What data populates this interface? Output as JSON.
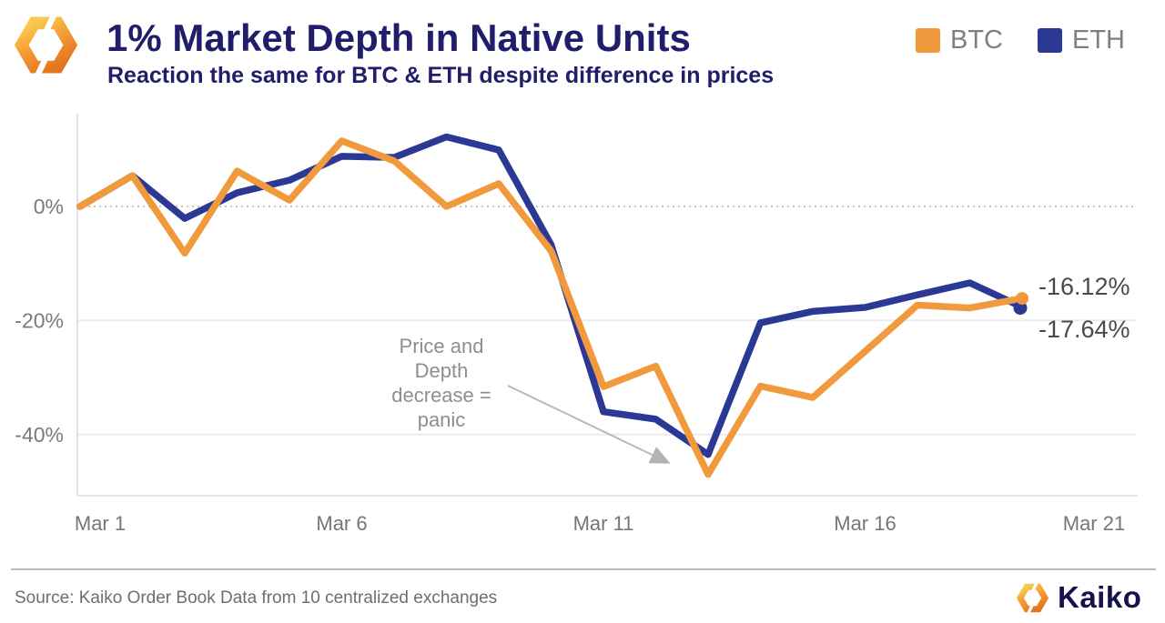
{
  "header": {
    "title": "1% Market Depth in Native Units",
    "subtitle": "Reaction the same for BTC & ETH despite difference in prices"
  },
  "legend": [
    {
      "label": "BTC",
      "color": "#F19A3D"
    },
    {
      "label": "ETH",
      "color": "#2B3894"
    }
  ],
  "footer": {
    "source": "Source: Kaiko Order Book Data from 10 centralized exchanges",
    "brand": "Kaiko"
  },
  "chart_data": {
    "type": "line",
    "x": [
      "Mar 1",
      "Mar 2",
      "Mar 3",
      "Mar 4",
      "Mar 5",
      "Mar 6",
      "Mar 7",
      "Mar 8",
      "Mar 9",
      "Mar 10",
      "Mar 11",
      "Mar 12",
      "Mar 13",
      "Mar 14",
      "Mar 15",
      "Mar 16",
      "Mar 17",
      "Mar 18",
      "Mar 19"
    ],
    "series": [
      {
        "name": "BTC",
        "color": "#F19A3D",
        "values": [
          0,
          5.4,
          -8.2,
          6.2,
          1.1,
          11.5,
          8.0,
          0,
          4.0,
          -7.8,
          -31.6,
          -28.0,
          -47.0,
          -31.5,
          -33.5,
          -25.4,
          -17.3,
          -17.8,
          -16.12
        ]
      },
      {
        "name": "ETH",
        "color": "#2B3894",
        "values": [
          0,
          5.4,
          -2.1,
          2.4,
          4.6,
          8.8,
          8.6,
          12.2,
          9.9,
          -6.7,
          -36.0,
          -37.3,
          -43.5,
          -20.4,
          -18.4,
          -17.7,
          -15.5,
          -13.4,
          -17.64
        ]
      }
    ],
    "yticks": [
      {
        "value": 0,
        "label": "0%"
      },
      {
        "value": -20,
        "label": "-20%"
      },
      {
        "value": -40,
        "label": "-40%"
      }
    ],
    "xticks": [
      {
        "day": 0,
        "label": "Mar 1"
      },
      {
        "day": 5,
        "label": "Mar 6"
      },
      {
        "day": 10,
        "label": "Mar 11"
      },
      {
        "day": 15,
        "label": "Mar 16"
      },
      {
        "day": 20,
        "label": "Mar 21"
      }
    ],
    "ylim": [
      -50,
      15
    ],
    "grid": "horizontal, zero-line dotted",
    "legend_position": "top-right",
    "end_labels": [
      {
        "series": "BTC",
        "text": "-16.12%"
      },
      {
        "series": "ETH",
        "text": "-17.64%"
      }
    ],
    "annotation": {
      "lines": [
        "Price and",
        "Depth",
        "decrease =",
        "panic"
      ]
    }
  }
}
